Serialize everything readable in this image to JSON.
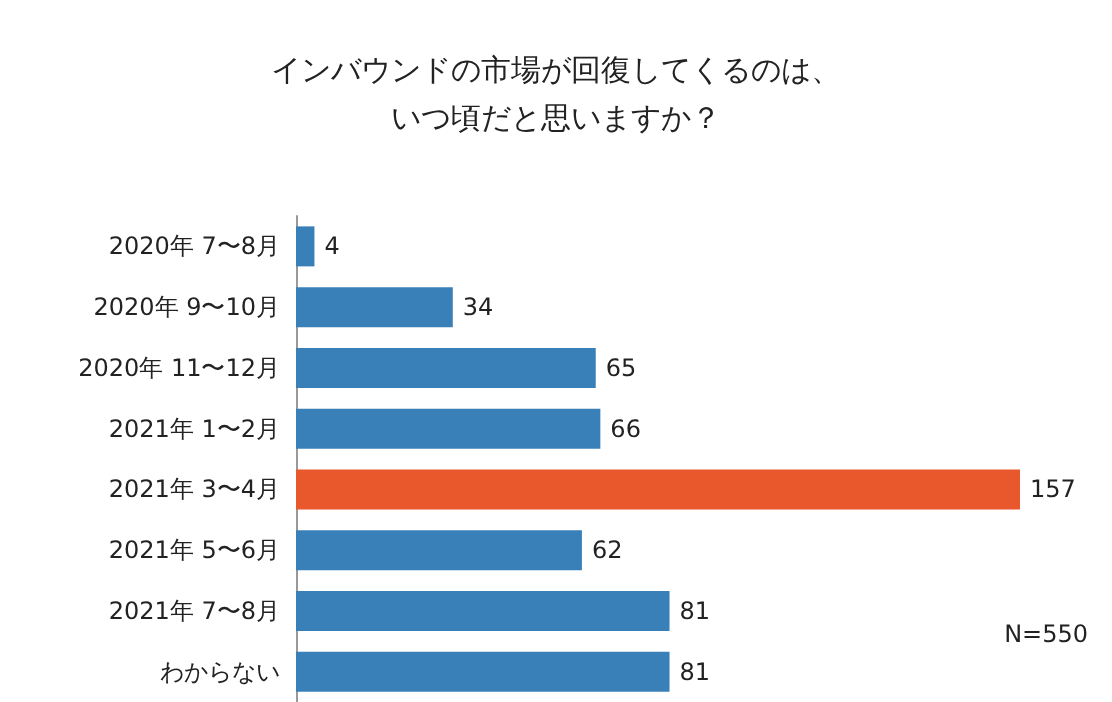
{
  "chart_data": {
    "type": "bar",
    "orientation": "horizontal",
    "title": "インバウンドの市場が回復してくるのは、いつ頃だと思いますか？",
    "categories": [
      "2020年 7〜8月",
      "2020年 9〜10月",
      "2020年 11〜12月",
      "2021年 1〜2月",
      "2021年 3〜4月",
      "2021年 5〜6月",
      "2021年 7〜8月",
      "わからない"
    ],
    "values": [
      4,
      34,
      65,
      66,
      157,
      62,
      81,
      81
    ],
    "colors": [
      "#3a80b8",
      "#3a80b8",
      "#3a80b8",
      "#3a80b8",
      "#e8582c",
      "#3a80b8",
      "#3a80b8",
      "#3a80b8"
    ],
    "data_labels": true,
    "annotations": [
      "N=550"
    ]
  }
}
